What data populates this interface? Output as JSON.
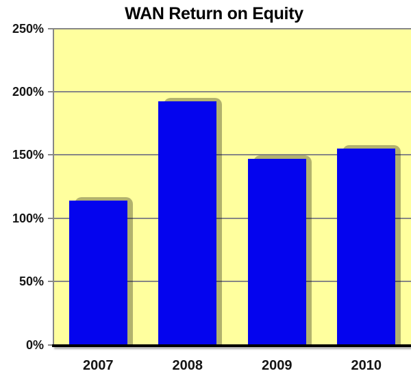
{
  "chart_data": {
    "type": "bar",
    "title": "WAN Return on Equity",
    "categories": [
      "2007",
      "2008",
      "2009",
      "2010"
    ],
    "values": [
      114,
      192,
      147,
      155
    ],
    "value_unit": "%",
    "xlabel": "",
    "ylabel": "",
    "ylim": [
      0,
      250
    ],
    "yticks": [
      0,
      50,
      100,
      150,
      200,
      250
    ],
    "ytick_labels": [
      "0%",
      "50%",
      "100%",
      "150%",
      "200%",
      "250%"
    ],
    "grid": true,
    "legend_position": "none",
    "colors": {
      "plot_bg": "#ffff9e",
      "bar": "#0404ee",
      "bar_shadow": "rgba(0,0,0,0.30)",
      "gridline": "#868686",
      "axis": "#000000",
      "text": "#151515",
      "outer_bg": "#ffffff"
    }
  }
}
